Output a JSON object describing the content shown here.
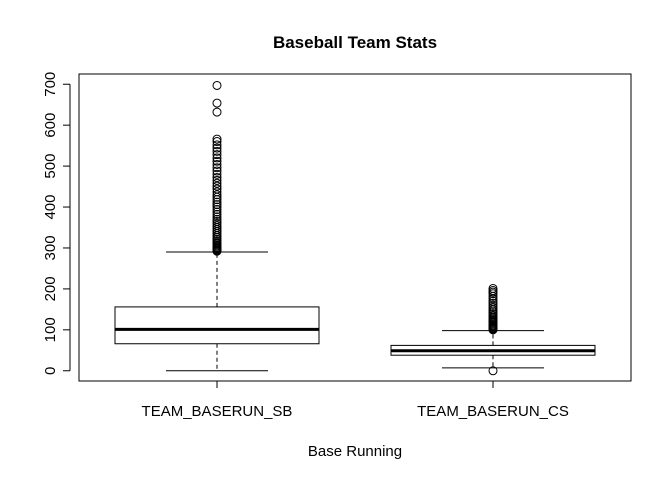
{
  "chart_data": {
    "type": "boxplot",
    "title": "Baseball Team Stats",
    "xlabel": "Base Running",
    "ylabel": "",
    "ylim": [
      -25,
      725
    ],
    "yticks": [
      0,
      100,
      200,
      300,
      400,
      500,
      600,
      700
    ],
    "grid": false,
    "categories": [
      "TEAM_BASERUN_SB",
      "TEAM_BASERUN_CS"
    ],
    "boxes": [
      {
        "name": "TEAM_BASERUN_SB",
        "whisker_low": 0,
        "q1": 66,
        "median": 101,
        "q3": 156,
        "whisker_high": 290,
        "outliers": [
          292,
          294,
          296,
          298,
          300,
          302,
          305,
          308,
          311,
          314,
          318,
          322,
          326,
          330,
          335,
          340,
          345,
          350,
          355,
          360,
          365,
          370,
          376,
          382,
          388,
          394,
          400,
          406,
          412,
          418,
          424,
          430,
          437,
          444,
          451,
          458,
          465,
          472,
          480,
          488,
          496,
          504,
          512,
          520,
          528,
          536,
          544,
          552,
          560,
          566,
          632,
          654,
          697
        ]
      },
      {
        "name": "TEAM_BASERUN_CS",
        "whisker_low": 7,
        "q1": 38,
        "median": 49,
        "q3": 62,
        "whisker_high": 98,
        "outliers": [
          0,
          100,
          102,
          104,
          106,
          108,
          110,
          112,
          115,
          118,
          121,
          124,
          127,
          130,
          134,
          138,
          142,
          146,
          150,
          155,
          160,
          165,
          170,
          176,
          182,
          188,
          192,
          196,
          201
        ]
      }
    ]
  }
}
